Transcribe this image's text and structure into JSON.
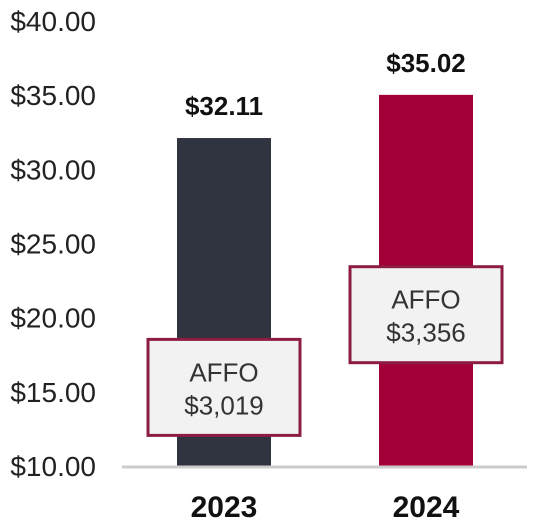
{
  "chart_data": {
    "type": "bar",
    "categories": [
      "2023",
      "2024"
    ],
    "values": [
      32.11,
      35.02
    ],
    "value_labels": [
      "$32.11",
      "$35.02"
    ],
    "ylim": [
      10,
      40
    ],
    "yticks": [
      "$10.00",
      "$15.00",
      "$20.00",
      "$25.00",
      "$30.00",
      "$35.00",
      "$40.00"
    ],
    "colors": [
      "#2f3440",
      "#a3003a"
    ],
    "annotations": [
      {
        "line1": "AFFO",
        "line2": "$3,019",
        "y_center": 15.3
      },
      {
        "line1": "AFFO",
        "line2": "$3,356",
        "y_center": 20.2
      }
    ],
    "annotation_border_color": "#8c1c44",
    "annotation_fill_color": "#f2f2f2",
    "axis_color": "#cccccc",
    "grid": false
  }
}
